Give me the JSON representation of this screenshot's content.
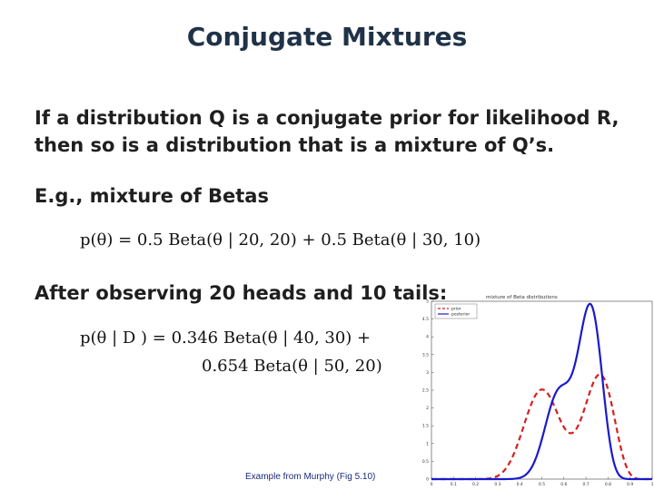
{
  "title": "Conjugate Mixtures",
  "paragraph1": {
    "line1": "If a distribution Q is a conjugate prior for likelihood R,",
    "line2": "then so is a distribution that is a mixture of Q’s."
  },
  "example_heading": "E.g., mixture of Betas",
  "prior_equation": "p(θ) = 0.5 Beta(θ | 20, 20) + 0.5 Beta(θ | 30, 10)",
  "observation_heading": "After observing 20 heads and 10 tails:",
  "posterior_equation": {
    "line1": "p(θ | D ) = 0.346 Beta(θ | 40, 30) +",
    "line2": "0.654 Beta(θ | 50, 20)"
  },
  "caption": "Example from Murphy (Fig 5.10)",
  "chart_data": {
    "type": "line",
    "title": "mixture of Beta distributions",
    "xlim": [
      0,
      1
    ],
    "ylim": [
      0,
      5
    ],
    "x_ticks": [
      "0",
      "0.1",
      "0.2",
      "0.3",
      "0.4",
      "0.5",
      "0.6",
      "0.7",
      "0.8",
      "0.9",
      "1"
    ],
    "y_ticks": [
      "0",
      "0.5",
      "1",
      "1.5",
      "2",
      "2.5",
      "3",
      "3.5",
      "4",
      "4.5",
      "5"
    ],
    "legend_position": "top-left",
    "series": [
      {
        "name": "prior",
        "color": "#d42020",
        "style": "dashed",
        "components": [
          {
            "weight": 0.5,
            "a": 20,
            "b": 20
          },
          {
            "weight": 0.5,
            "a": 30,
            "b": 10
          }
        ]
      },
      {
        "name": "posterior",
        "color": "#1a1acc",
        "style": "solid",
        "components": [
          {
            "weight": 0.346,
            "a": 40,
            "b": 30
          },
          {
            "weight": 0.654,
            "a": 50,
            "b": 20
          }
        ]
      }
    ]
  }
}
